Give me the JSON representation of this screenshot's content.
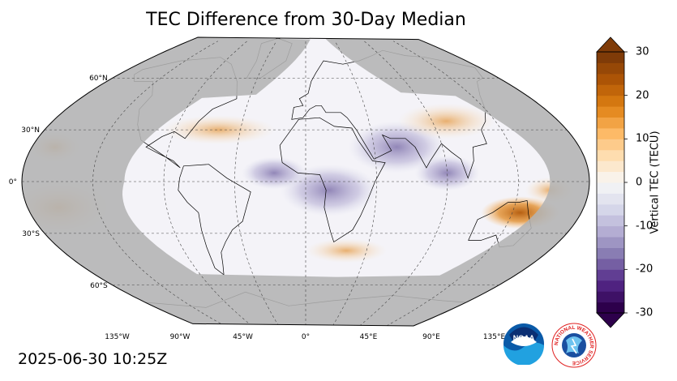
{
  "title": "TEC Difference from 30-Day Median",
  "timestamp": "2025-06-30 10:25Z",
  "map": {
    "projection": "robinson",
    "lat_labels": [
      {
        "value": 60,
        "text": "60°N"
      },
      {
        "value": 30,
        "text": "30°N"
      },
      {
        "value": 0,
        "text": "0°"
      },
      {
        "value": -30,
        "text": "30°S"
      },
      {
        "value": -60,
        "text": "60°S"
      }
    ],
    "lon_labels": [
      {
        "value": -135,
        "text": "135°W"
      },
      {
        "value": -90,
        "text": "90°W"
      },
      {
        "value": -45,
        "text": "45°W"
      },
      {
        "value": 0,
        "text": "0°"
      },
      {
        "value": 45,
        "text": "45°E"
      },
      {
        "value": 90,
        "text": "90°E"
      },
      {
        "value": 135,
        "text": "135°E"
      }
    ],
    "night_color": "#b3b3b3",
    "ocean_color": "#f2f2f7"
  },
  "colorbar": {
    "label": "Vertical TEC (TECU)",
    "min": -30,
    "max": 30,
    "ticks": [
      {
        "value": 30,
        "text": "30"
      },
      {
        "value": 20,
        "text": "20"
      },
      {
        "value": 10,
        "text": "10"
      },
      {
        "value": 0,
        "text": "0"
      },
      {
        "value": -10,
        "text": "-10"
      },
      {
        "value": -20,
        "text": "-20"
      },
      {
        "value": -30,
        "text": "-30"
      }
    ],
    "colors": [
      "#2d004b",
      "#542788",
      "#8073ac",
      "#b2abd2",
      "#d8daeb",
      "#f7f7f7",
      "#fee0b6",
      "#fdb863",
      "#e08214",
      "#b35806",
      "#7f3b08"
    ]
  },
  "features": [
    {
      "name": "positive-anomaly-australia",
      "lon": 140,
      "lat": -18,
      "value": 25
    },
    {
      "name": "negative-anomaly-africa",
      "lon": 15,
      "lat": -5,
      "value": -12
    },
    {
      "name": "negative-anomaly-india",
      "lon": 60,
      "lat": 20,
      "value": -10
    },
    {
      "name": "positive-anomaly-pacific",
      "lon": -160,
      "lat": -15,
      "value": 10
    }
  ],
  "logos": {
    "noaa": "NOAA",
    "nws": "NATIONAL WEATHER SERVICE"
  }
}
